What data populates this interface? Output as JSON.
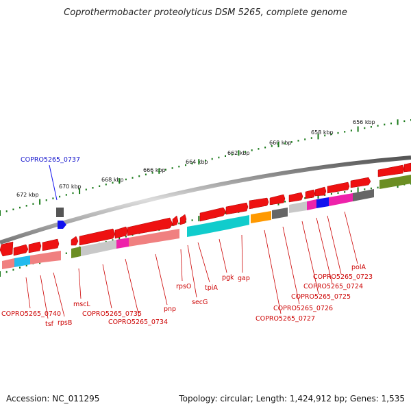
{
  "title": "Coprothermobacter proteolyticus DSM 5265, complete genome",
  "scale_ticks": [
    "672 kbp",
    "670 kbp",
    "668 kbp",
    "666 kbp",
    "664 kbp",
    "662 kbp",
    "660 kbp",
    "658 kbp",
    "656 kbp"
  ],
  "highlight_label": "COPRO5265_0737",
  "gene_labels": [
    "COPRO5265_0740",
    "tsf",
    "rpsB",
    "mscL",
    "COPRO5265_0735",
    "COPRO5265_0734",
    "pnp",
    "rpsO",
    "secG",
    "tpiA",
    "pgk",
    "gap",
    "COPRO5265_0727",
    "COPRO5265_0726",
    "COPRO5265_0725",
    "COPRO5265_0724",
    "COPRO5265_0723",
    "polA"
  ],
  "footer": {
    "accession": "Accession: NC_011295",
    "summary": "Topology: circular; Length: 1,424,912 bp; Genes: 1,535"
  },
  "colors": {
    "forward_gene": "#ee1111",
    "reverse_gene": "#ee1111",
    "backbone": "#888888",
    "scale_dots": "#1a7a1a",
    "highlight": "#1111ee",
    "label_red": "#cc0000"
  }
}
